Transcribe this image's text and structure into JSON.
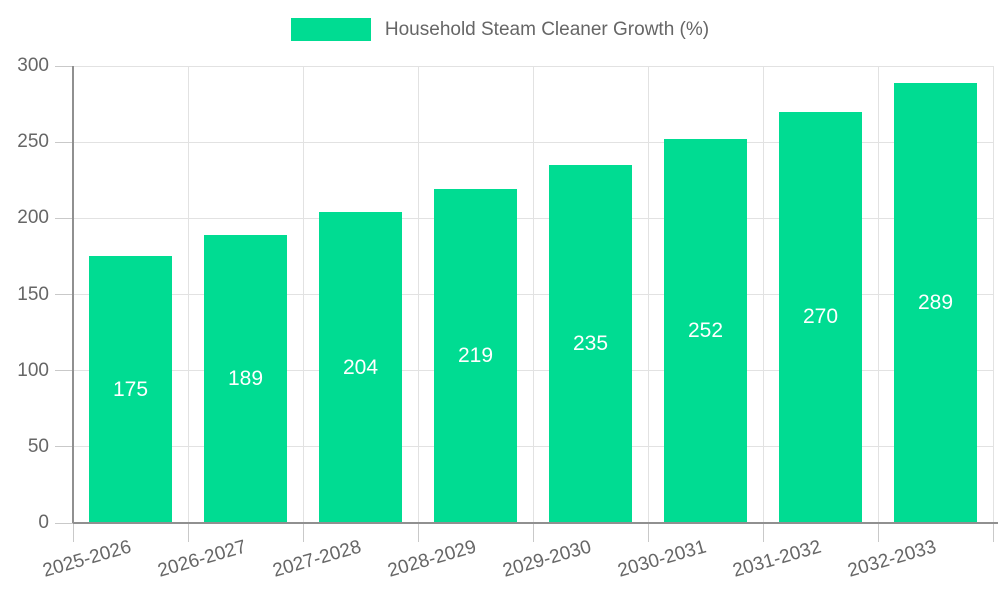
{
  "legend": {
    "label": "Household Steam Cleaner Growth (%)"
  },
  "chart_data": {
    "type": "bar",
    "title": "",
    "categories": [
      "2025-2026",
      "2026-2027",
      "2027-2028",
      "2028-2029",
      "2029-2030",
      "2030-2031",
      "2031-2032",
      "2032-2033"
    ],
    "values": [
      175,
      189,
      204,
      219,
      235,
      252,
      270,
      289
    ],
    "series_name": "Household Steam Cleaner Growth (%)",
    "xlabel": "",
    "ylabel": "",
    "ylim": [
      0,
      300
    ],
    "ytick_step": 50,
    "yticks": [
      0,
      50,
      100,
      150,
      200,
      250,
      300
    ],
    "grid": true,
    "legend_position": "top-center",
    "x_label_rotation_deg": -16,
    "colors": {
      "bar": "#00DC92",
      "value_label": "#ffffff",
      "grid": "#e2e2e2",
      "axis": "#909090",
      "tick": "#c9c9c9",
      "text": "#666666"
    }
  }
}
